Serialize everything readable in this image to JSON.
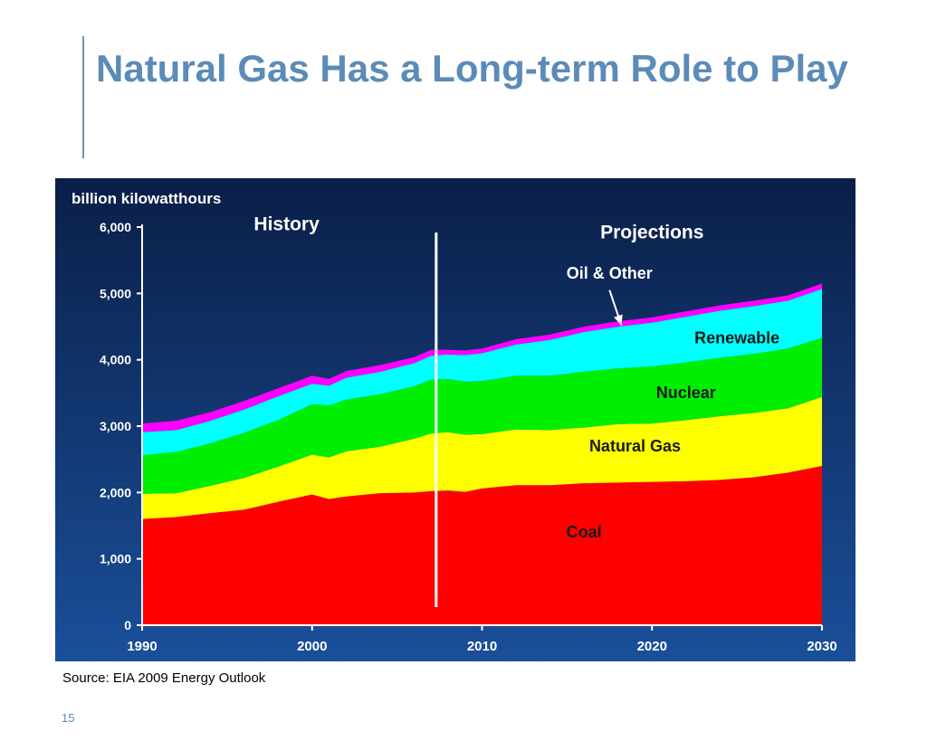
{
  "slide": {
    "title": "Natural Gas Has a Long-term Role to Play",
    "source": "Source:  EIA 2009 Energy Outlook",
    "page_number": "15"
  },
  "colors": {
    "background_top": "#0a1f48",
    "background_bottom": "#1a4f9a",
    "axis": "#ffffff",
    "text": "#ffffff",
    "history_divider": "#ffffff"
  },
  "chart_data": {
    "type": "area",
    "stacked": true,
    "ylabel": "billion kilowatthours",
    "ylim": [
      0,
      6000
    ],
    "xlim": [
      1990,
      2030
    ],
    "yticks": [
      0,
      1000,
      2000,
      3000,
      4000,
      5000,
      6000
    ],
    "ytick_labels": [
      "0",
      "1,000",
      "2,000",
      "3,000",
      "4,000",
      "5,000",
      "6,000"
    ],
    "xticks": [
      1990,
      2000,
      2010,
      2020,
      2030
    ],
    "xtick_labels": [
      "1990",
      "2000",
      "2010",
      "2020",
      "2030"
    ],
    "history_end_year": 2007.3,
    "section_labels": [
      {
        "text": "History",
        "x": 1998.5,
        "y": 5950
      },
      {
        "text": "Projections",
        "x": 2020,
        "y": 5830
      }
    ],
    "x": [
      1990,
      1992,
      1994,
      1996,
      1998,
      2000,
      2001,
      2002,
      2004,
      2006,
      2007,
      2008,
      2009,
      2010,
      2012,
      2014,
      2016,
      2018,
      2020,
      2022,
      2024,
      2026,
      2028,
      2030
    ],
    "series": [
      {
        "name": "Coal",
        "color": "#ff0000",
        "label_x": 2016,
        "label_y": 1320,
        "values": [
          1600,
          1630,
          1690,
          1740,
          1860,
          1970,
          1900,
          1940,
          1990,
          2000,
          2020,
          2030,
          2010,
          2060,
          2110,
          2110,
          2140,
          2150,
          2160,
          2170,
          2190,
          2230,
          2300,
          2400
        ]
      },
      {
        "name": "Natural Gas",
        "color": "#ffff00",
        "label_x": 2019,
        "label_y": 2620,
        "values": [
          380,
          360,
          410,
          480,
          530,
          600,
          630,
          680,
          700,
          810,
          870,
          880,
          860,
          820,
          840,
          830,
          840,
          880,
          880,
          920,
          960,
          970,
          970,
          1040
        ]
      },
      {
        "name": "Nuclear",
        "color": "#00ee00",
        "label_x": 2022,
        "label_y": 3420,
        "values": [
          580,
          620,
          640,
          680,
          700,
          760,
          780,
          780,
          790,
          790,
          810,
          800,
          800,
          800,
          810,
          820,
          840,
          840,
          860,
          870,
          880,
          890,
          900,
          890
        ]
      },
      {
        "name": "Renewable",
        "color": "#00ffff",
        "label_x": 2025,
        "label_y": 4250,
        "values": [
          350,
          330,
          340,
          350,
          360,
          310,
          300,
          330,
          340,
          350,
          360,
          370,
          400,
          420,
          470,
          540,
          600,
          630,
          660,
          690,
          710,
          720,
          720,
          740
        ]
      },
      {
        "name": "Oil & Other",
        "color": "#ff00ff",
        "label_x": 2017.5,
        "label_y": 5220,
        "values": [
          130,
          140,
          130,
          130,
          120,
          120,
          100,
          100,
          100,
          90,
          90,
          70,
          70,
          70,
          80,
          80,
          80,
          80,
          80,
          80,
          80,
          80,
          80,
          80
        ]
      }
    ],
    "annotations": [
      {
        "text": "Oil & Other",
        "from": [
          2017.5,
          5050
        ],
        "to": [
          2018.2,
          4520
        ]
      }
    ]
  }
}
